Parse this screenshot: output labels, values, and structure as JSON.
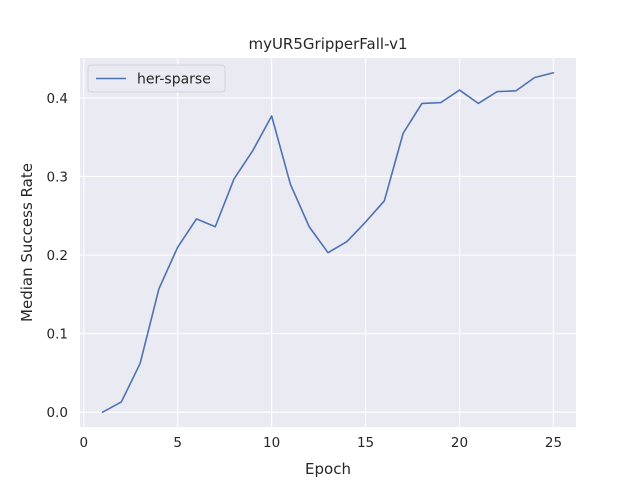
{
  "chart_data": {
    "type": "line",
    "title": "myUR5GripperFall-v1",
    "xlabel": "Epoch",
    "ylabel": "Median Success Rate",
    "xlim": [
      -0.2,
      26.2
    ],
    "ylim": [
      -0.0189,
      0.4508
    ],
    "xticks": [
      0,
      5,
      10,
      15,
      20,
      25
    ],
    "yticks": [
      0.0,
      0.1,
      0.2,
      0.3,
      0.4
    ],
    "xtick_labels": [
      "0",
      "5",
      "10",
      "15",
      "20",
      "25"
    ],
    "ytick_labels": [
      "0.0",
      "0.1",
      "0.2",
      "0.3",
      "0.4"
    ],
    "grid": true,
    "legend_position": "top-left",
    "series": [
      {
        "name": "her-sparse",
        "color": "#4c72b0",
        "x": [
          1,
          2,
          3,
          4,
          5,
          6,
          7,
          8,
          9,
          10,
          11,
          12,
          13,
          14,
          15,
          16,
          17,
          18,
          19,
          20,
          21,
          22,
          23,
          24,
          25
        ],
        "values": [
          0.0,
          0.013,
          0.062,
          0.157,
          0.21,
          0.246,
          0.236,
          0.297,
          0.333,
          0.377,
          0.29,
          0.236,
          0.203,
          0.217,
          0.242,
          0.269,
          0.355,
          0.393,
          0.394,
          0.41,
          0.393,
          0.408,
          0.409,
          0.426,
          0.432
        ]
      }
    ]
  }
}
